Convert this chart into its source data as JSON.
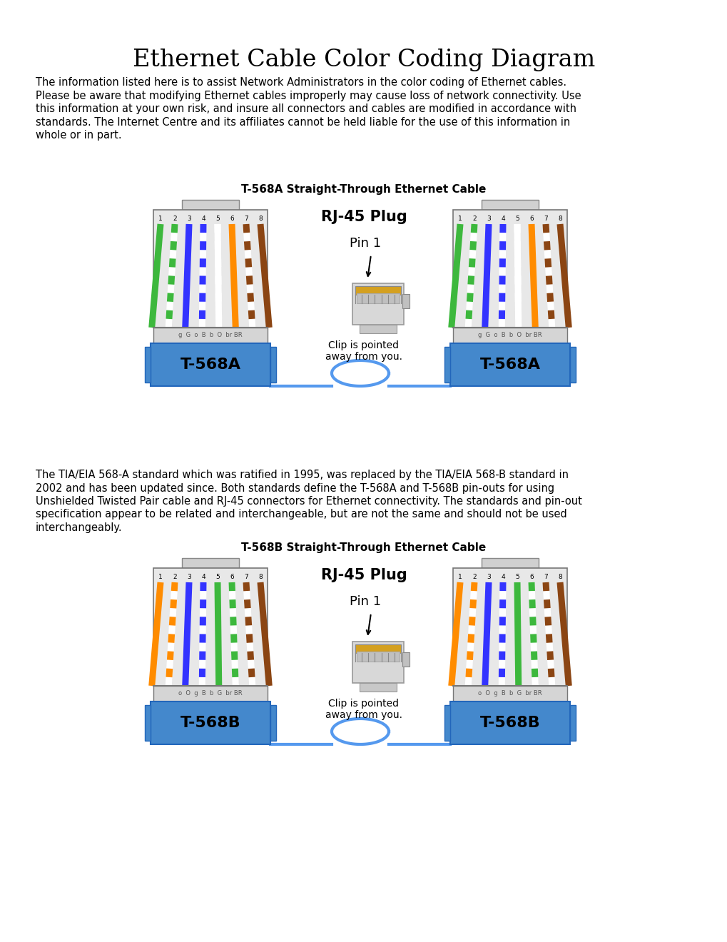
{
  "title": "Ethernet Cable Color Coding Diagram",
  "title_fontsize": 24,
  "body_text1_lines": [
    "The information listed here is to assist Network Administrators in the color coding of Ethernet cables.",
    "Please be aware that modifying Ethernet cables improperly may cause loss of network connectivity. Use",
    "this information at your own risk, and insure all connectors and cables are modified in accordance with",
    "standards. The Internet Centre and its affiliates cannot be held liable for the use of this information in",
    "whole or in part."
  ],
  "body_text2_lines": [
    "The TIA/EIA 568-A standard which was ratified in 1995, was replaced by the TIA/EIA 568-B standard in",
    "2002 and has been updated since. Both standards define the T-568A and T-568B pin-outs for using",
    "Unshielded Twisted Pair cable and RJ-45 connectors for Ethernet connectivity. The standards and pin-out",
    "specification appear to be related and interchangeable, but are not the same and should not be used",
    "interchangeably."
  ],
  "diagram1_title": "T-568A Straight-Through Ethernet Cable",
  "diagram2_title": "T-568B Straight-Through Ethernet Cable",
  "label_568A": "T-568A",
  "label_568B": "T-568B",
  "rj45_label": "RJ-45 Plug",
  "pin1_label": "Pin 1",
  "clip_label": "Clip is pointed\naway from you.",
  "background_color": "#ffffff",
  "connector_blue": "#4488cc",
  "connector_grey": "#e0e0e0",
  "connector_dark_grey": "#c8c8c8",
  "wire_colors_568A": [
    "#3db83d",
    "#ffffff",
    "#3333ff",
    "#ffffff",
    "#ffffff",
    "#ff8c00",
    "#ffffff",
    "#8B4513"
  ],
  "wire_stripes_568A": [
    false,
    true,
    false,
    true,
    true,
    false,
    true,
    false
  ],
  "wire_stripe_col_568A": [
    "#3db83d",
    "#3db83d",
    "#3333ff",
    "#3333ff",
    "#ffffff",
    "#ff8c00",
    "#8B4513",
    "#8B4513"
  ],
  "wire_colors_568B": [
    "#ff8c00",
    "#ffffff",
    "#3333ff",
    "#ffffff",
    "#3db83d",
    "#ffffff",
    "#ffffff",
    "#8B4513"
  ],
  "wire_stripes_568B": [
    false,
    true,
    false,
    true,
    false,
    true,
    true,
    false
  ],
  "wire_stripe_col_568B": [
    "#ff8c00",
    "#ff8c00",
    "#3333ff",
    "#3333ff",
    "#3db83d",
    "#3db83d",
    "#8B4513",
    "#8B4513"
  ],
  "wire_label_568A": "g  G  o  B  b  O  br BR",
  "wire_label_568B": "o  O  g  B  b  G  br BR",
  "text_color": "#000000",
  "body_fontsize": 10.5
}
